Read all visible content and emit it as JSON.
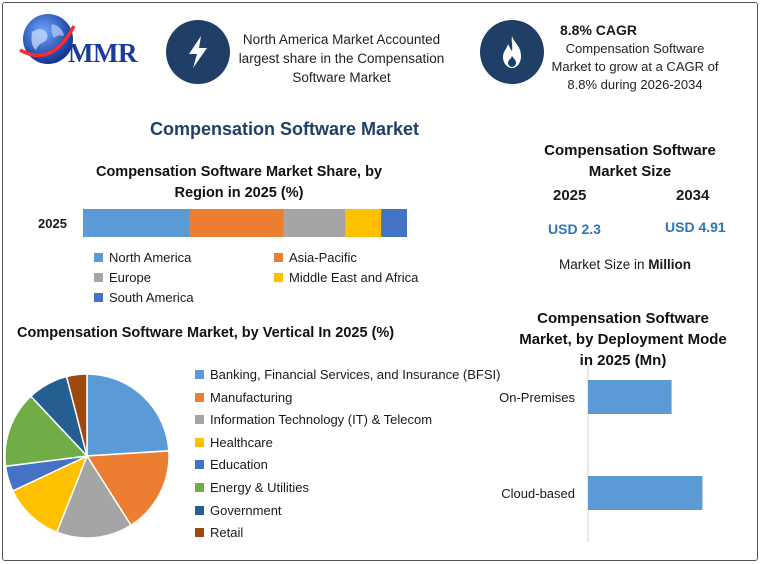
{
  "logo": {
    "text": "MMR"
  },
  "header": {
    "info1": "North America Market Accounted largest share in the Compensation Software Market",
    "cagr_title": "8.8% CAGR",
    "cagr_text": "Compensation Software Market to grow at a CAGR of 8.8% during 2026-2034",
    "icon1": "lightning-icon",
    "icon2": "flame-icon"
  },
  "main_title": "Compensation Software Market",
  "market_size": {
    "title": "Compensation Software Market Size",
    "year1": "2025",
    "year2": "2034",
    "value1": "USD 2.3",
    "value2": "USD 4.91",
    "note_prefix": "Market Size in",
    "note_unit": "Million"
  },
  "colors": {
    "blue": "#5b9bd5",
    "orange": "#ed7d31",
    "gray": "#a5a5a5",
    "yellow": "#ffc000",
    "darkblue": "#4472c4",
    "green": "#70ad47",
    "navy": "#255e91",
    "brown": "#9e480e"
  },
  "chart_data": [
    {
      "type": "bar",
      "orientation": "horizontal-stacked",
      "title": "Compensation Software Market Share, by Region in 2025 (%)",
      "categories": [
        "2025"
      ],
      "series": [
        {
          "name": "North America",
          "values": [
            33
          ],
          "color": "#5b9bd5"
        },
        {
          "name": "Asia-Pacific",
          "values": [
            29
          ],
          "color": "#ed7d31"
        },
        {
          "name": "Europe",
          "values": [
            19
          ],
          "color": "#a5a5a5"
        },
        {
          "name": "Middle East and Africa",
          "values": [
            11
          ],
          "color": "#ffc000"
        },
        {
          "name": "South America",
          "values": [
            8
          ],
          "color": "#4472c4"
        }
      ],
      "legend": "bottom"
    },
    {
      "type": "pie",
      "title": "Compensation Software Market, by Vertical In 2025 (%)",
      "labels": [
        "Banking, Financial Services, and Insurance (BFSI)",
        "Manufacturing",
        "Information Technology (IT) & Telecom",
        "Healthcare",
        "Education",
        "Energy & Utilities",
        "Government",
        "Retail"
      ],
      "values": [
        24,
        17,
        15,
        12,
        5,
        15,
        8,
        4
      ],
      "colors": [
        "#5b9bd5",
        "#ed7d31",
        "#a5a5a5",
        "#ffc000",
        "#4472c4",
        "#70ad47",
        "#255e91",
        "#9e480e"
      ],
      "legend": "right"
    },
    {
      "type": "bar",
      "orientation": "horizontal",
      "title": "Compensation Software Market, by Deployment Mode in 2025 (Mn)",
      "categories": [
        "On-Premises",
        "Cloud-based"
      ],
      "values": [
        0.95,
        1.3
      ],
      "color": "#5b9bd5"
    }
  ]
}
